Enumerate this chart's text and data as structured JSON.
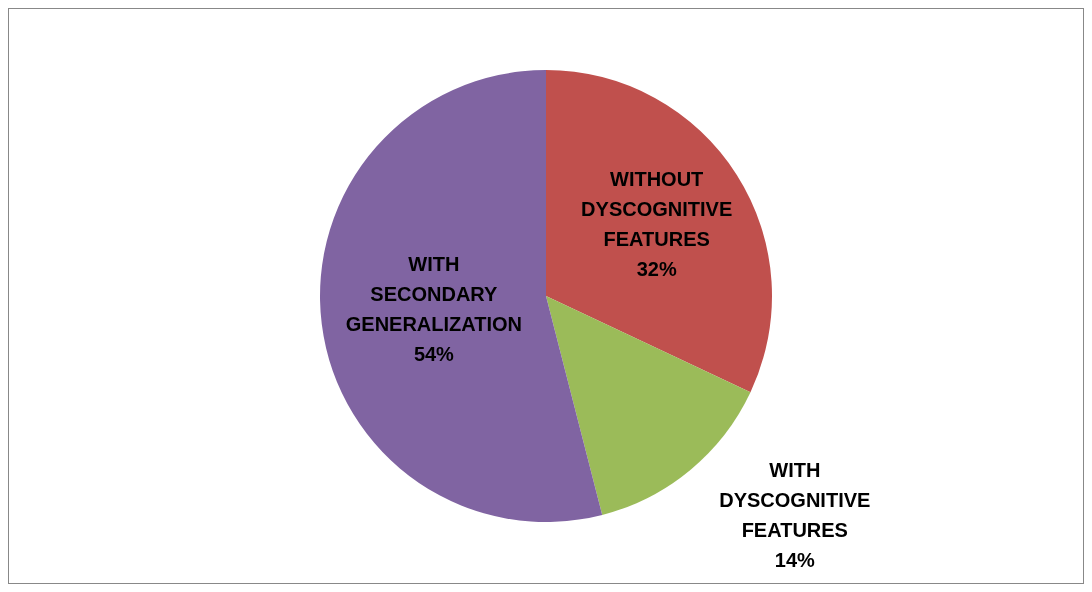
{
  "chart_data": {
    "type": "pie",
    "categories": [
      "WITHOUT DYSCOGNITIVE FEATURES",
      "WITH DYSCOGNITIVE FEATURES",
      "WITH SECONDARY GENERALIZATION"
    ],
    "values": [
      32,
      14,
      54
    ],
    "colors": [
      "#c0504d",
      "#9bbb59",
      "#8064a2"
    ],
    "value_labels": [
      "32%",
      "14%",
      "54%"
    ],
    "legend": false
  }
}
